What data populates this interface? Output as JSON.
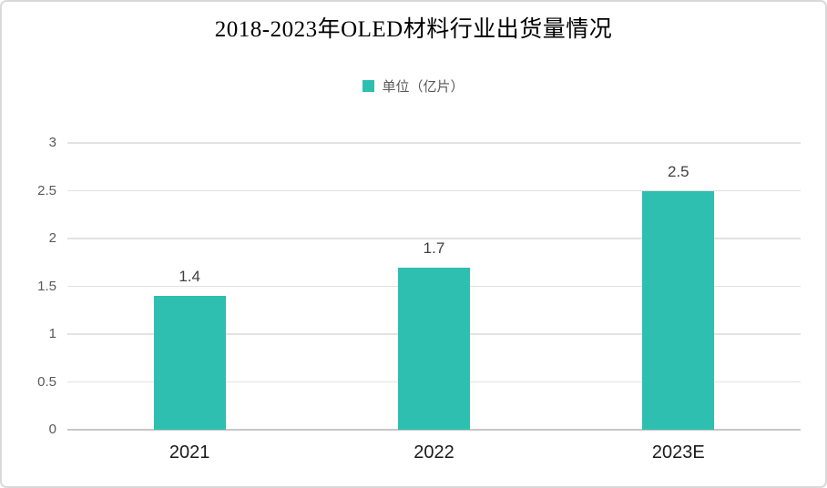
{
  "chart_data": {
    "type": "bar",
    "title": "2018-2023年OLED材料行业出货量情况",
    "legend": {
      "label": "单位（亿片）",
      "position": "top"
    },
    "categories": [
      "2021",
      "2022",
      "2023E"
    ],
    "values": [
      1.4,
      1.7,
      2.5
    ],
    "data_labels": [
      "1.4",
      "1.7",
      "2.5"
    ],
    "xlabel": "",
    "ylabel": "",
    "ylim": [
      0,
      3
    ],
    "yticks": [
      0,
      0.5,
      1,
      1.5,
      2,
      2.5,
      3
    ],
    "ytick_labels": [
      "0",
      "0.5",
      "1",
      "1.5",
      "2",
      "2.5",
      "3"
    ],
    "grid": true,
    "colors": {
      "bar": "#2ebfb0",
      "gridline": "#e2e2e2",
      "axis_line": "#c6c6c6",
      "tick_label": "#595959",
      "data_label": "#404040",
      "x_label": "#1a1a1a",
      "legend_text": "#595959",
      "title": "#000000",
      "frame_border": "#d9d9d9",
      "background": "#ffffff"
    }
  }
}
